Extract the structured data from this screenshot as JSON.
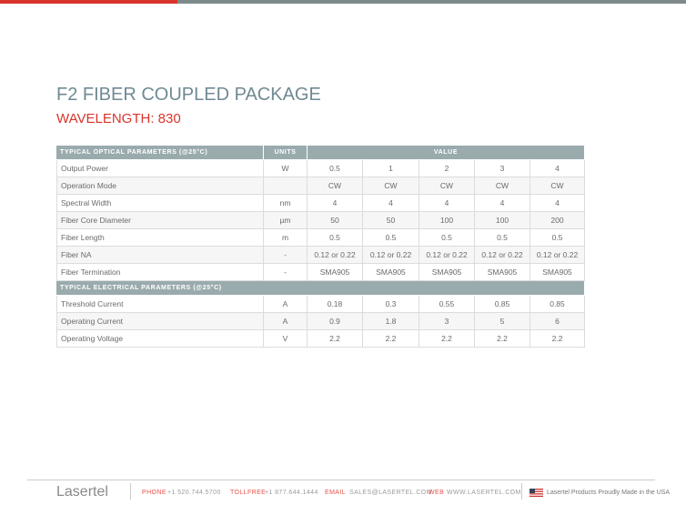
{
  "header": {
    "title": "F2 FIBER COUPLED PACKAGE",
    "subtitle": "WAVELENGTH: 830"
  },
  "table": {
    "sections": [
      {
        "headers": [
          "TYPICAL OPTICAL PARAMETERS (@25°C)",
          "UNITS",
          "VALUE"
        ],
        "rows": [
          [
            "Output Power",
            "W",
            "0.5",
            "1",
            "2",
            "3",
            "4"
          ],
          [
            "Operation Mode",
            null,
            "CW",
            "CW",
            "CW",
            "CW",
            "CW"
          ],
          [
            "Spectral Width",
            "nm",
            "4",
            "4",
            "4",
            "4",
            "4"
          ],
          [
            "Fiber Core Diameter",
            "µm",
            "50",
            "50",
            "100",
            "100",
            "200"
          ],
          [
            "Fiber Length",
            "m",
            "0.5",
            "0.5",
            "0.5",
            "0.5",
            "0.5"
          ],
          [
            "Fiber NA",
            "-",
            "0.12 or 0.22",
            "0.12 or 0.22",
            "0.12 or 0.22",
            "0.12 or 0.22",
            "0.12 or 0.22"
          ],
          [
            "Fiber Termination",
            "-",
            "SMA905",
            "SMA905",
            "SMA905",
            "SMA905",
            "SMA905"
          ]
        ]
      },
      {
        "headers": [
          "TYPICAL ELECTRICAL PARAMETERS (@25°C)"
        ],
        "rows": [
          [
            "Threshold Current",
            "A",
            "0.18",
            "0.3",
            "0.55",
            "0.85",
            "0.85"
          ],
          [
            "Operating Current",
            "A",
            "0.9",
            "1.8",
            "3",
            "5",
            "6"
          ],
          [
            "Operating Voltage",
            "V",
            "2.2",
            "2.2",
            "2.2",
            "2.2",
            "2.2"
          ]
        ]
      }
    ]
  },
  "footer": {
    "brand": "Lasertel",
    "contacts": [
      {
        "label": "PHONE",
        "value": "+1 520.744.5700"
      },
      {
        "label": "TOLLFREE",
        "value": "+1 877.644.1444"
      },
      {
        "label": "EMAIL",
        "value": "SALES@LASERTEL.COM"
      },
      {
        "label": "WEB",
        "value": "WWW.LASERTEL.COM"
      }
    ],
    "tagline": "Lasertel Products Proudly Made in the USA"
  }
}
